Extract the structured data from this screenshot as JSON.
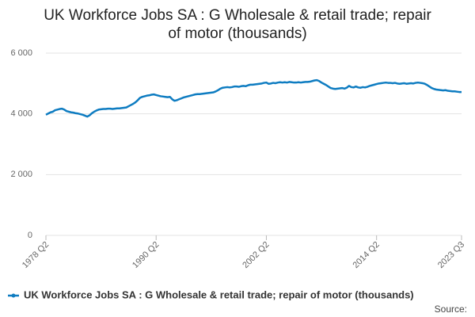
{
  "chart_data": {
    "type": "line",
    "title": [
      "UK Workforce Jobs SA : G Wholesale & retail trade; repair",
      "of motor (thousands)"
    ],
    "source_label": "Source:",
    "categories": [
      "1978 Q2",
      null,
      null,
      null,
      null,
      null,
      null,
      null,
      null,
      null,
      null,
      null,
      null,
      null,
      null,
      null,
      null,
      null,
      null,
      null,
      null,
      null,
      null,
      null,
      null,
      null,
      null,
      null,
      null,
      null,
      null,
      null,
      null,
      null,
      null,
      null,
      null,
      null,
      null,
      null,
      null,
      null,
      null,
      null,
      null,
      null,
      null,
      null,
      "1990 Q2",
      null,
      null,
      null,
      null,
      null,
      null,
      null,
      null,
      null,
      null,
      null,
      null,
      null,
      null,
      null,
      null,
      null,
      null,
      null,
      null,
      null,
      null,
      null,
      null,
      null,
      null,
      null,
      null,
      null,
      null,
      null,
      null,
      null,
      null,
      null,
      null,
      null,
      null,
      null,
      null,
      null,
      null,
      null,
      null,
      null,
      null,
      null,
      "2002 Q2",
      null,
      null,
      null,
      null,
      null,
      null,
      null,
      null,
      null,
      null,
      null,
      null,
      null,
      null,
      null,
      null,
      null,
      null,
      null,
      null,
      null,
      null,
      null,
      null,
      null,
      null,
      null,
      null,
      null,
      null,
      null,
      null,
      null,
      null,
      null,
      null,
      null,
      null,
      null,
      null,
      null,
      null,
      null,
      null,
      null,
      null,
      null,
      "2014 Q2",
      null,
      null,
      null,
      null,
      null,
      null,
      null,
      null,
      null,
      null,
      null,
      null,
      null,
      null,
      null,
      null,
      null,
      null,
      null,
      null,
      null,
      null,
      null,
      null,
      null,
      null,
      null,
      null,
      null,
      null,
      null,
      null,
      null,
      null,
      null,
      null,
      "2023 Q3"
    ],
    "series": [
      {
        "name": "UK Workforce Jobs SA : G Wholesale & retail trade; repair of motor (thousands)",
        "color": "#0e7cc1",
        "values": [
          3970,
          4010,
          4050,
          4070,
          4120,
          4140,
          4160,
          4170,
          4140,
          4090,
          4070,
          4050,
          4040,
          4020,
          4010,
          3990,
          3970,
          3940,
          3910,
          3950,
          4020,
          4070,
          4110,
          4140,
          4150,
          4160,
          4160,
          4170,
          4170,
          4160,
          4170,
          4180,
          4180,
          4190,
          4200,
          4210,
          4250,
          4290,
          4330,
          4380,
          4450,
          4530,
          4560,
          4580,
          4600,
          4610,
          4630,
          4640,
          4620,
          4600,
          4580,
          4570,
          4560,
          4550,
          4560,
          4480,
          4430,
          4450,
          4480,
          4510,
          4540,
          4560,
          4580,
          4600,
          4620,
          4640,
          4650,
          4650,
          4660,
          4670,
          4680,
          4690,
          4700,
          4710,
          4740,
          4780,
          4830,
          4860,
          4870,
          4880,
          4870,
          4880,
          4900,
          4900,
          4890,
          4910,
          4920,
          4910,
          4940,
          4960,
          4960,
          4970,
          4980,
          4990,
          5000,
          5020,
          5030,
          4990,
          5000,
          5020,
          5010,
          5030,
          5040,
          5030,
          5040,
          5030,
          5050,
          5040,
          5030,
          5030,
          5040,
          5030,
          5040,
          5050,
          5050,
          5060,
          5080,
          5100,
          5110,
          5080,
          5030,
          4990,
          4950,
          4900,
          4850,
          4830,
          4820,
          4830,
          4840,
          4850,
          4830,
          4860,
          4920,
          4880,
          4870,
          4900,
          4870,
          4860,
          4880,
          4870,
          4890,
          4920,
          4940,
          4960,
          4980,
          5000,
          5010,
          5020,
          5030,
          5020,
          5020,
          5010,
          5020,
          5000,
          4990,
          5000,
          5010,
          4990,
          5000,
          5010,
          5000,
          5020,
          5030,
          5020,
          5010,
          4990,
          4950,
          4900,
          4850,
          4820,
          4800,
          4790,
          4780,
          4770,
          4780,
          4760,
          4750,
          4740,
          4740,
          4730,
          4720,
          4720
        ]
      }
    ],
    "ylim": [
      0,
      6000
    ],
    "yticks": [
      {
        "value": 0,
        "label": "0"
      },
      {
        "value": 2000,
        "label": "2 000"
      },
      {
        "value": 4000,
        "label": "4 000"
      },
      {
        "value": 6000,
        "label": "6 000"
      }
    ],
    "grid": true
  }
}
